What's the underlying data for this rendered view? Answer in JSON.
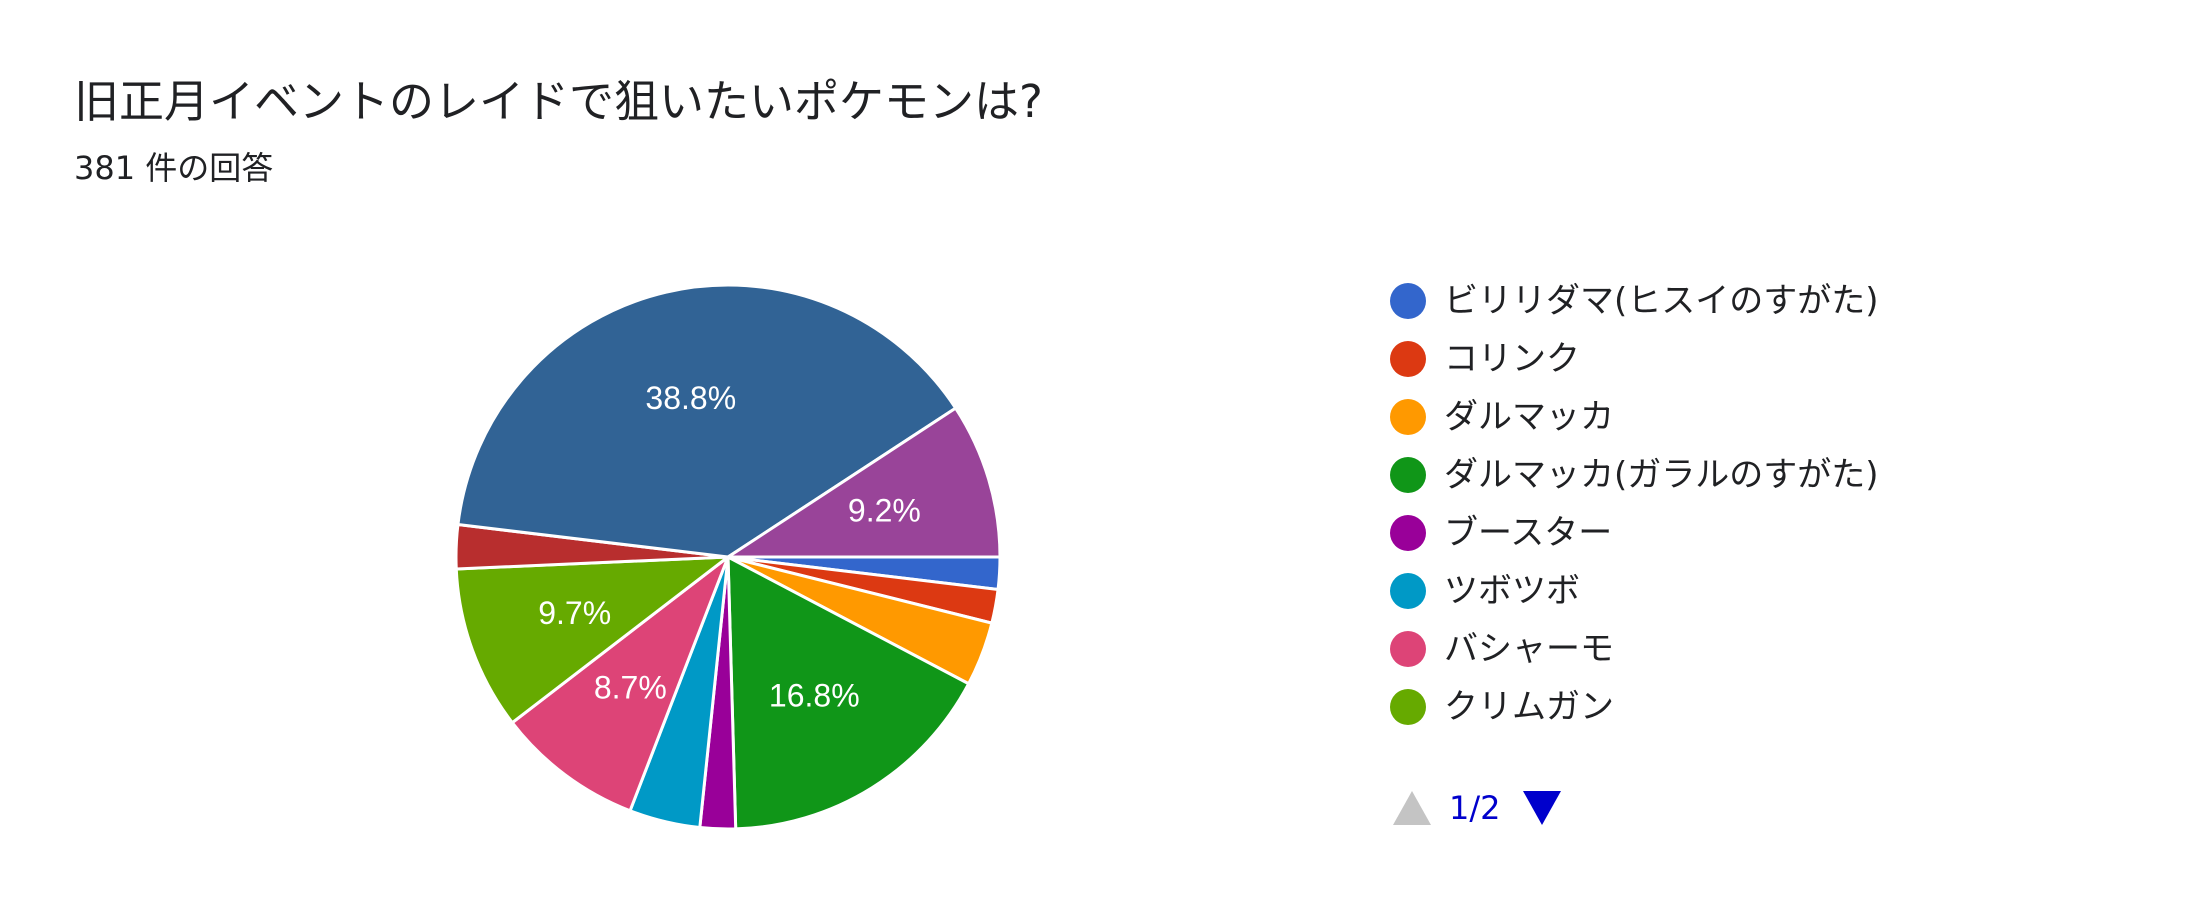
{
  "header": {
    "title": "旧正月イベントのレイドで狙いたいポケモンは?",
    "response_count": "381 件の回答"
  },
  "chart_data": {
    "type": "pie",
    "title": "旧正月イベントのレイドで狙いたいポケモンは?",
    "total_responses": 381,
    "slices": [
      {
        "label": "ビリリダマ(ヒスイのすがた)",
        "value": 1.9,
        "color": "#3366cc",
        "data_label": ""
      },
      {
        "label": "コリンク",
        "value": 2.0,
        "color": "#dc3912",
        "data_label": ""
      },
      {
        "label": "ダルマッカ",
        "value": 3.8,
        "color": "#ff9900",
        "data_label": ""
      },
      {
        "label": "ダルマッカ(ガラルのすがた)",
        "value": 16.8,
        "color": "#109618",
        "data_label": "16.8%"
      },
      {
        "label": "ブースター",
        "value": 2.1,
        "color": "#990099",
        "data_label": ""
      },
      {
        "label": "ツボツボ",
        "value": 4.2,
        "color": "#0099c6",
        "data_label": ""
      },
      {
        "label": "バシャーモ",
        "value": 8.7,
        "color": "#dd4477",
        "data_label": "8.7%"
      },
      {
        "label": "クリムガン",
        "value": 9.7,
        "color": "#66aa00",
        "data_label": "9.7%"
      },
      {
        "label": "",
        "value": 2.6,
        "color": "#b82e2e",
        "data_label": ""
      },
      {
        "label": "",
        "value": 38.8,
        "color": "#316395",
        "data_label": "38.8%"
      },
      {
        "label": "",
        "value": 9.2,
        "color": "#994499",
        "data_label": "9.2%"
      }
    ],
    "legend_position": "right"
  },
  "legend": {
    "items": [
      {
        "label": "ビリリダマ(ヒスイのすがた)",
        "color": "#3366cc"
      },
      {
        "label": "コリンク",
        "color": "#dc3912"
      },
      {
        "label": "ダルマッカ",
        "color": "#ff9900"
      },
      {
        "label": "ダルマッカ(ガラルのすがた)",
        "color": "#109618"
      },
      {
        "label": "ブースター",
        "color": "#990099"
      },
      {
        "label": "ツボツボ",
        "color": "#0099c6"
      },
      {
        "label": "バシャーモ",
        "color": "#dd4477"
      },
      {
        "label": "クリムガン",
        "color": "#66aa00"
      }
    ]
  },
  "pager": {
    "text": "1/2",
    "prev_icon": "triangle-up-icon",
    "next_icon": "triangle-down-icon"
  }
}
